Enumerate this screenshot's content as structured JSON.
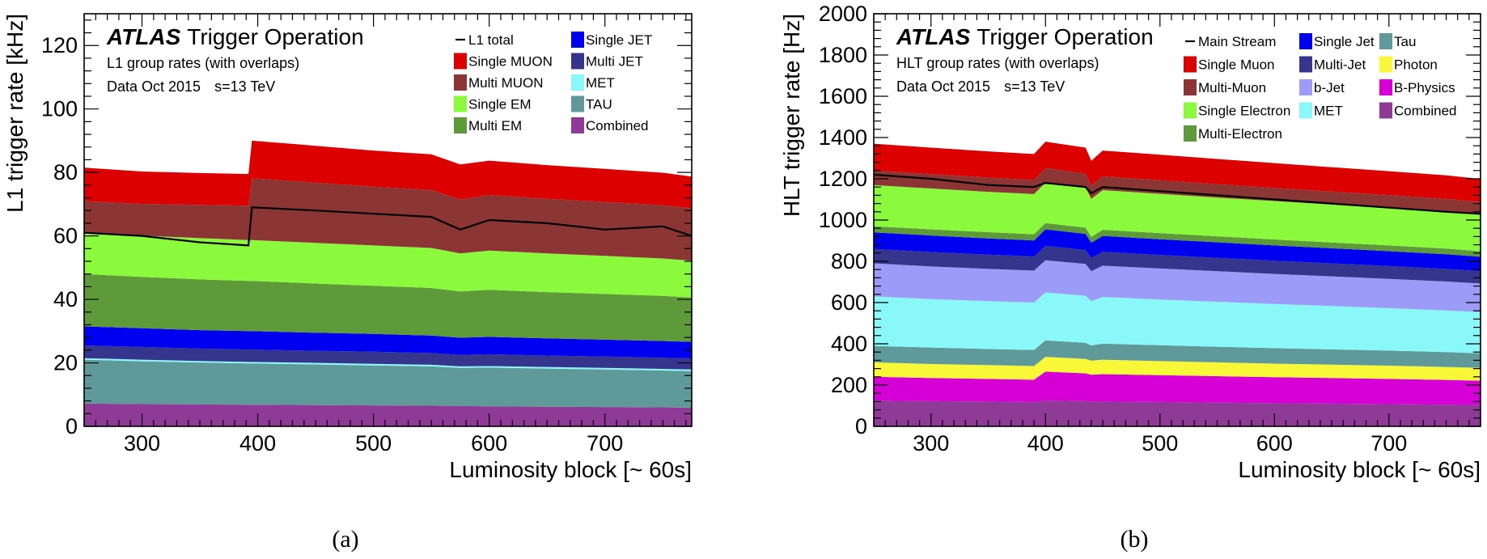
{
  "captions": [
    "(a)",
    "(b)"
  ],
  "chart_data": [
    {
      "type": "area",
      "stacked": true,
      "title_bold": "ATLAS",
      "title_rest": "Trigger Operation",
      "subtitle1": "L1 group rates (with overlaps)",
      "subtitle2_prefix": "Data Oct 2015",
      "subtitle2_sqrt": "s",
      "subtitle2_suffix": "=13 TeV",
      "xlabel": "Luminosity block [~ 60s]",
      "ylabel": "L1 trigger rate [kHz]",
      "xlim": [
        250,
        775
      ],
      "ylim": [
        0,
        130
      ],
      "xticks": [
        300,
        400,
        500,
        600,
        700
      ],
      "yticks": [
        0,
        20,
        40,
        60,
        80,
        100,
        120
      ],
      "x": [
        250,
        300,
        350,
        392,
        395,
        450,
        500,
        550,
        575,
        600,
        650,
        700,
        750,
        775
      ],
      "series": [
        {
          "name": "Combined",
          "color": "#8e3a96",
          "values": [
            7.2,
            7.0,
            6.9,
            6.8,
            6.8,
            6.7,
            6.6,
            6.5,
            6.4,
            6.3,
            6.2,
            6.1,
            6.0,
            5.9
          ]
        },
        {
          "name": "TAU",
          "color": "#5f9999",
          "values": [
            13.8,
            13.5,
            13.2,
            13.0,
            13.0,
            12.8,
            12.6,
            12.4,
            12.0,
            12.2,
            12.0,
            11.8,
            11.6,
            11.5
          ]
        },
        {
          "name": "MET",
          "color": "#8af8f8",
          "values": [
            0.5,
            0.5,
            0.5,
            0.5,
            0.5,
            0.5,
            0.5,
            0.5,
            0.5,
            0.5,
            0.5,
            0.5,
            0.5,
            0.5
          ]
        },
        {
          "name": "Multi JET",
          "color": "#35358e",
          "values": [
            4.0,
            4.0,
            3.9,
            3.9,
            3.9,
            3.8,
            3.8,
            3.7,
            3.6,
            3.7,
            3.6,
            3.6,
            3.5,
            3.5
          ]
        },
        {
          "name": "Single JET",
          "color": "#0000f0",
          "values": [
            6.0,
            5.9,
            5.8,
            5.8,
            5.8,
            5.7,
            5.6,
            5.5,
            5.4,
            5.5,
            5.4,
            5.3,
            5.3,
            5.2
          ]
        },
        {
          "name": "Multi EM",
          "color": "#5e9a3a",
          "values": [
            16.5,
            16.2,
            16.0,
            15.8,
            15.8,
            15.5,
            15.2,
            15.0,
            14.6,
            14.8,
            14.6,
            14.4,
            14.2,
            14.0
          ]
        },
        {
          "name": "Single EM",
          "color": "#8cfa3c",
          "values": [
            13.0,
            13.0,
            13.0,
            12.9,
            12.9,
            12.8,
            12.7,
            12.6,
            12.0,
            12.4,
            12.2,
            12.0,
            11.8,
            11.6
          ]
        },
        {
          "name": "Multi MUON",
          "color": "#8b3535",
          "values": [
            10.0,
            10.0,
            10.5,
            10.8,
            19.5,
            19.0,
            18.5,
            18.3,
            17.0,
            17.5,
            17.2,
            17.0,
            16.8,
            16.5
          ]
        },
        {
          "name": "Single MUON",
          "color": "#dd0000",
          "values": [
            10.5,
            10.2,
            10.0,
            10.0,
            11.8,
            11.6,
            11.4,
            11.2,
            11.0,
            10.8,
            10.6,
            10.4,
            10.2,
            10.0
          ]
        }
      ],
      "total_name": "L1 total",
      "total": [
        61,
        60,
        58,
        57,
        69,
        68,
        67,
        66,
        62,
        65,
        64,
        62,
        63,
        60
      ],
      "legend": [
        [
          "L1 total",
          "Single JET"
        ],
        [
          "Single MUON",
          "Multi JET"
        ],
        [
          "Multi MUON",
          "MET"
        ],
        [
          "Single EM",
          "TAU"
        ],
        [
          "Multi EM",
          "Combined"
        ]
      ]
    },
    {
      "type": "area",
      "stacked": true,
      "title_bold": "ATLAS",
      "title_rest": "Trigger Operation",
      "subtitle1": "HLT group rates (with overlaps)",
      "subtitle2_prefix": "Data Oct 2015",
      "subtitle2_sqrt": "s",
      "subtitle2_suffix": "=13 TeV",
      "xlabel": "Luminosity block [~ 60s]",
      "ylabel": "HLT trigger rate [Hz]",
      "xlim": [
        250,
        780
      ],
      "ylim": [
        0,
        2000
      ],
      "xticks": [
        300,
        400,
        500,
        600,
        700
      ],
      "yticks": [
        0,
        200,
        400,
        600,
        800,
        1000,
        1200,
        1400,
        1600,
        1800,
        2000
      ],
      "x": [
        250,
        300,
        350,
        390,
        400,
        435,
        440,
        450,
        500,
        550,
        600,
        650,
        700,
        750,
        780
      ],
      "series": [
        {
          "name": "Combined",
          "color": "#8e3a96",
          "values": [
            125,
            122,
            120,
            118,
            125,
            122,
            120,
            120,
            118,
            115,
            112,
            110,
            108,
            105,
            103
          ]
        },
        {
          "name": "B-Physics",
          "color": "#d600d6",
          "values": [
            115,
            112,
            110,
            108,
            140,
            135,
            130,
            133,
            130,
            128,
            126,
            124,
            122,
            120,
            118
          ]
        },
        {
          "name": "Photon",
          "color": "#f8f838",
          "values": [
            70,
            68,
            67,
            66,
            72,
            70,
            68,
            70,
            68,
            67,
            66,
            65,
            64,
            63,
            62
          ]
        },
        {
          "name": "Tau",
          "color": "#5f9999",
          "values": [
            80,
            80,
            78,
            78,
            80,
            78,
            74,
            78,
            77,
            76,
            75,
            74,
            73,
            72,
            71
          ]
        },
        {
          "name": "MET",
          "color": "#8af8f8",
          "values": [
            240,
            235,
            232,
            230,
            232,
            228,
            215,
            226,
            222,
            218,
            214,
            210,
            206,
            202,
            200
          ]
        },
        {
          "name": "b-Jet",
          "color": "#9c9cf8",
          "values": [
            160,
            158,
            156,
            155,
            156,
            154,
            145,
            152,
            150,
            148,
            146,
            144,
            142,
            140,
            138
          ]
        },
        {
          "name": "Multi-Jet",
          "color": "#35358e",
          "values": [
            70,
            70,
            69,
            68,
            70,
            68,
            64,
            67,
            66,
            65,
            64,
            63,
            62,
            61,
            60
          ]
        },
        {
          "name": "Single Jet",
          "color": "#0000f0",
          "values": [
            80,
            80,
            79,
            78,
            80,
            78,
            74,
            77,
            76,
            75,
            74,
            73,
            72,
            71,
            70
          ]
        },
        {
          "name": "Multi-Electron",
          "color": "#5e9a3a",
          "values": [
            30,
            30,
            30,
            30,
            30,
            30,
            28,
            30,
            30,
            29,
            29,
            28,
            28,
            28,
            27
          ]
        },
        {
          "name": "Single Electron",
          "color": "#8cfa3c",
          "values": [
            200,
            198,
            196,
            195,
            197,
            194,
            185,
            192,
            190,
            188,
            186,
            184,
            182,
            180,
            178
          ]
        },
        {
          "name": "Multi-Muon",
          "color": "#8b3535",
          "values": [
            70,
            70,
            69,
            68,
            70,
            68,
            64,
            67,
            66,
            65,
            64,
            63,
            62,
            61,
            60
          ]
        },
        {
          "name": "Single Muon",
          "color": "#dd0000",
          "values": [
            130,
            128,
            127,
            126,
            128,
            126,
            120,
            125,
            124,
            122,
            120,
            118,
            116,
            114,
            112
          ]
        }
      ],
      "total_name": "Main Stream",
      "total": [
        1220,
        1200,
        1170,
        1160,
        1180,
        1160,
        1130,
        1160,
        1140,
        1120,
        1100,
        1080,
        1060,
        1040,
        1030
      ],
      "legend": [
        [
          "Main Stream",
          "Single Jet",
          "Tau"
        ],
        [
          "Single Muon",
          "Multi-Jet",
          "Photon"
        ],
        [
          "Multi-Muon",
          "b-Jet",
          "B-Physics"
        ],
        [
          "Single Electron",
          "MET",
          "Combined"
        ],
        [
          "Multi-Electron"
        ]
      ]
    }
  ]
}
